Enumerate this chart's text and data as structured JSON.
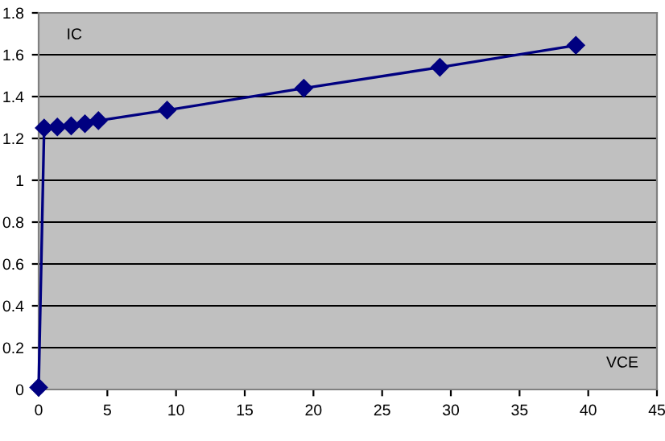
{
  "chart_data": {
    "type": "line",
    "xlabel": "VCE",
    "ylabel": "IC",
    "x": [
      0,
      0.4,
      1.36,
      2.37,
      3.37,
      4.35,
      9.35,
      19.3,
      29.2,
      39.1
    ],
    "series": [
      {
        "color": "#000080",
        "values": [
          0.01,
          1.25,
          1.255,
          1.26,
          1.27,
          1.285,
          1.335,
          1.44,
          1.54,
          1.645
        ]
      }
    ],
    "xlim": [
      0,
      45
    ],
    "xticks": [
      0,
      5,
      10,
      15,
      20,
      25,
      30,
      35,
      40,
      45
    ],
    "ylim": [
      0,
      1.8
    ],
    "yticks": [
      0,
      0.2,
      0.4,
      0.6,
      0.8,
      1,
      1.2,
      1.4,
      1.6,
      1.8
    ],
    "grid": "y",
    "marker": "diamond",
    "line_style": "solid"
  }
}
